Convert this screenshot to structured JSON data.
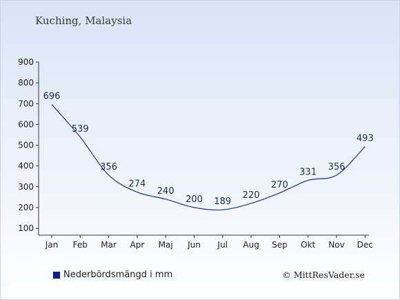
{
  "chart_title": "Kuching, Malaysia",
  "credit": "© MittResVader.se",
  "colors": {
    "series": "#1f2f8f",
    "axis": "#333333",
    "swatch": "#0a1a9a"
  },
  "chart_data": {
    "type": "line",
    "title": "Kuching, Malaysia",
    "categories": [
      "Jan",
      "Feb",
      "Mar",
      "Apr",
      "Maj",
      "Jun",
      "Jul",
      "Aug",
      "Sep",
      "Okt",
      "Nov",
      "Dec"
    ],
    "series": [
      {
        "name": "Nederbördsmängd i mm",
        "values": [
          696,
          539,
          356,
          274,
          240,
          200,
          189,
          220,
          270,
          331,
          356,
          493
        ]
      }
    ],
    "ylim": [
      100,
      900
    ],
    "yticks": [
      100,
      200,
      300,
      400,
      500,
      600,
      700,
      800,
      900
    ],
    "grid": false,
    "legend": "bottom-left"
  }
}
